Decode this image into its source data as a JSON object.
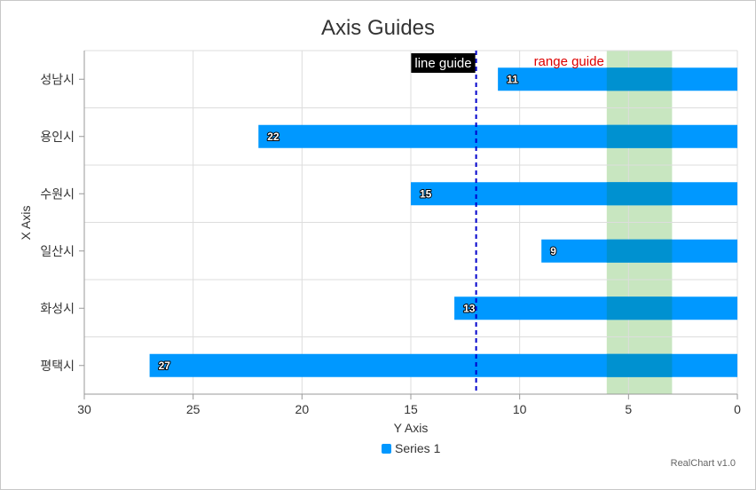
{
  "chart_data": {
    "type": "bar",
    "orientation": "horizontal",
    "title": "Axis Guides",
    "xlabel": "X Axis",
    "ylabel": "Y Axis",
    "categories": [
      "성남시",
      "용인시",
      "수원시",
      "일산시",
      "화성시",
      "평택시"
    ],
    "series": [
      {
        "name": "Series 1",
        "values": [
          11,
          22,
          15,
          9,
          13,
          27
        ]
      }
    ],
    "value_axis": {
      "range": [
        30,
        0
      ],
      "reversed": true,
      "ticks": [
        30,
        25,
        20,
        15,
        10,
        5,
        0
      ]
    },
    "grid": true,
    "legend": "bottom",
    "line_guide": {
      "label": "line guide",
      "value": 12
    },
    "range_guide": {
      "label": "range guide",
      "from": 6,
      "to": 3
    },
    "data_labels": true
  },
  "credits": "RealChart v1.0",
  "colors": {
    "series": "#0098ff",
    "series_overlap": "#0091d0",
    "line_guide": "#0000cc",
    "range_guide": "#c8e6c0",
    "range_label": "#dd0000",
    "grid": "#dddddd",
    "axis": "#999999"
  }
}
